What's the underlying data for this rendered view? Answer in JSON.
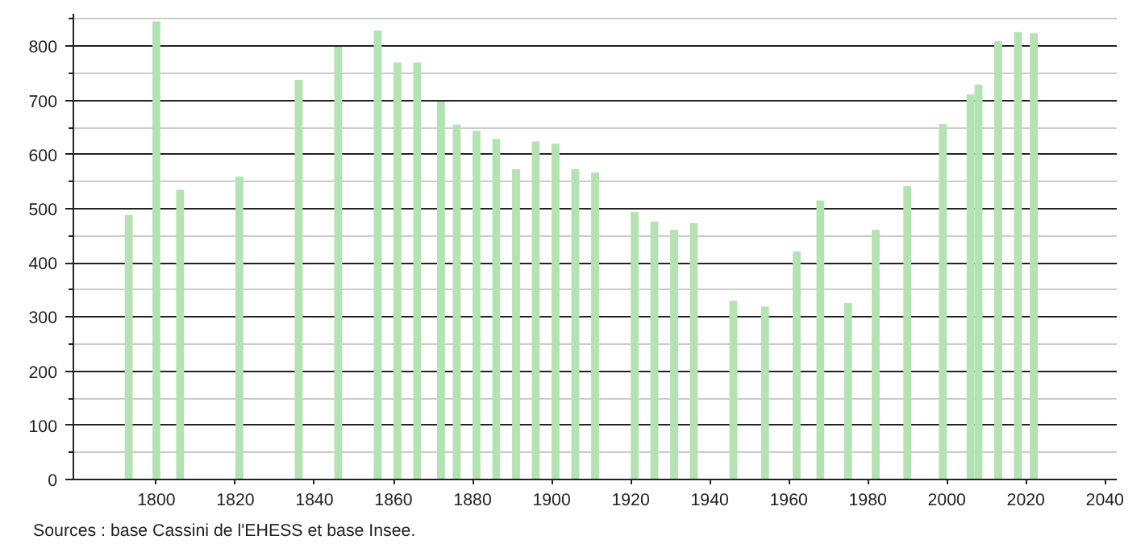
{
  "chart_data": {
    "type": "bar",
    "x": [
      1793,
      1800,
      1806,
      1821,
      1836,
      1846,
      1856,
      1861,
      1866,
      1872,
      1876,
      1881,
      1886,
      1891,
      1896,
      1901,
      1906,
      1911,
      1921,
      1926,
      1931,
      1936,
      1946,
      1954,
      1962,
      1968,
      1975,
      1982,
      1990,
      1999,
      2006,
      2008,
      2013,
      2018,
      2022
    ],
    "values": [
      488,
      846,
      535,
      559,
      738,
      799,
      829,
      770,
      770,
      698,
      655,
      644,
      629,
      573,
      624,
      620,
      573,
      567,
      494,
      476,
      461,
      473,
      330,
      319,
      421,
      515,
      326,
      461,
      542,
      656,
      711,
      729,
      809,
      826,
      824
    ],
    "color": "#b3e3b3",
    "xlim": [
      1779,
      2043
    ],
    "xticks": [
      1800,
      1820,
      1840,
      1860,
      1880,
      1900,
      1920,
      1940,
      1960,
      1980,
      2000,
      2020,
      2040
    ],
    "ylim": [
      0,
      860
    ],
    "yticks": [
      0,
      100,
      200,
      300,
      400,
      500,
      600,
      700,
      800
    ],
    "grid": "y",
    "annotations": [
      "Sources : base Cassini de l'EHESS et base Insee."
    ]
  }
}
